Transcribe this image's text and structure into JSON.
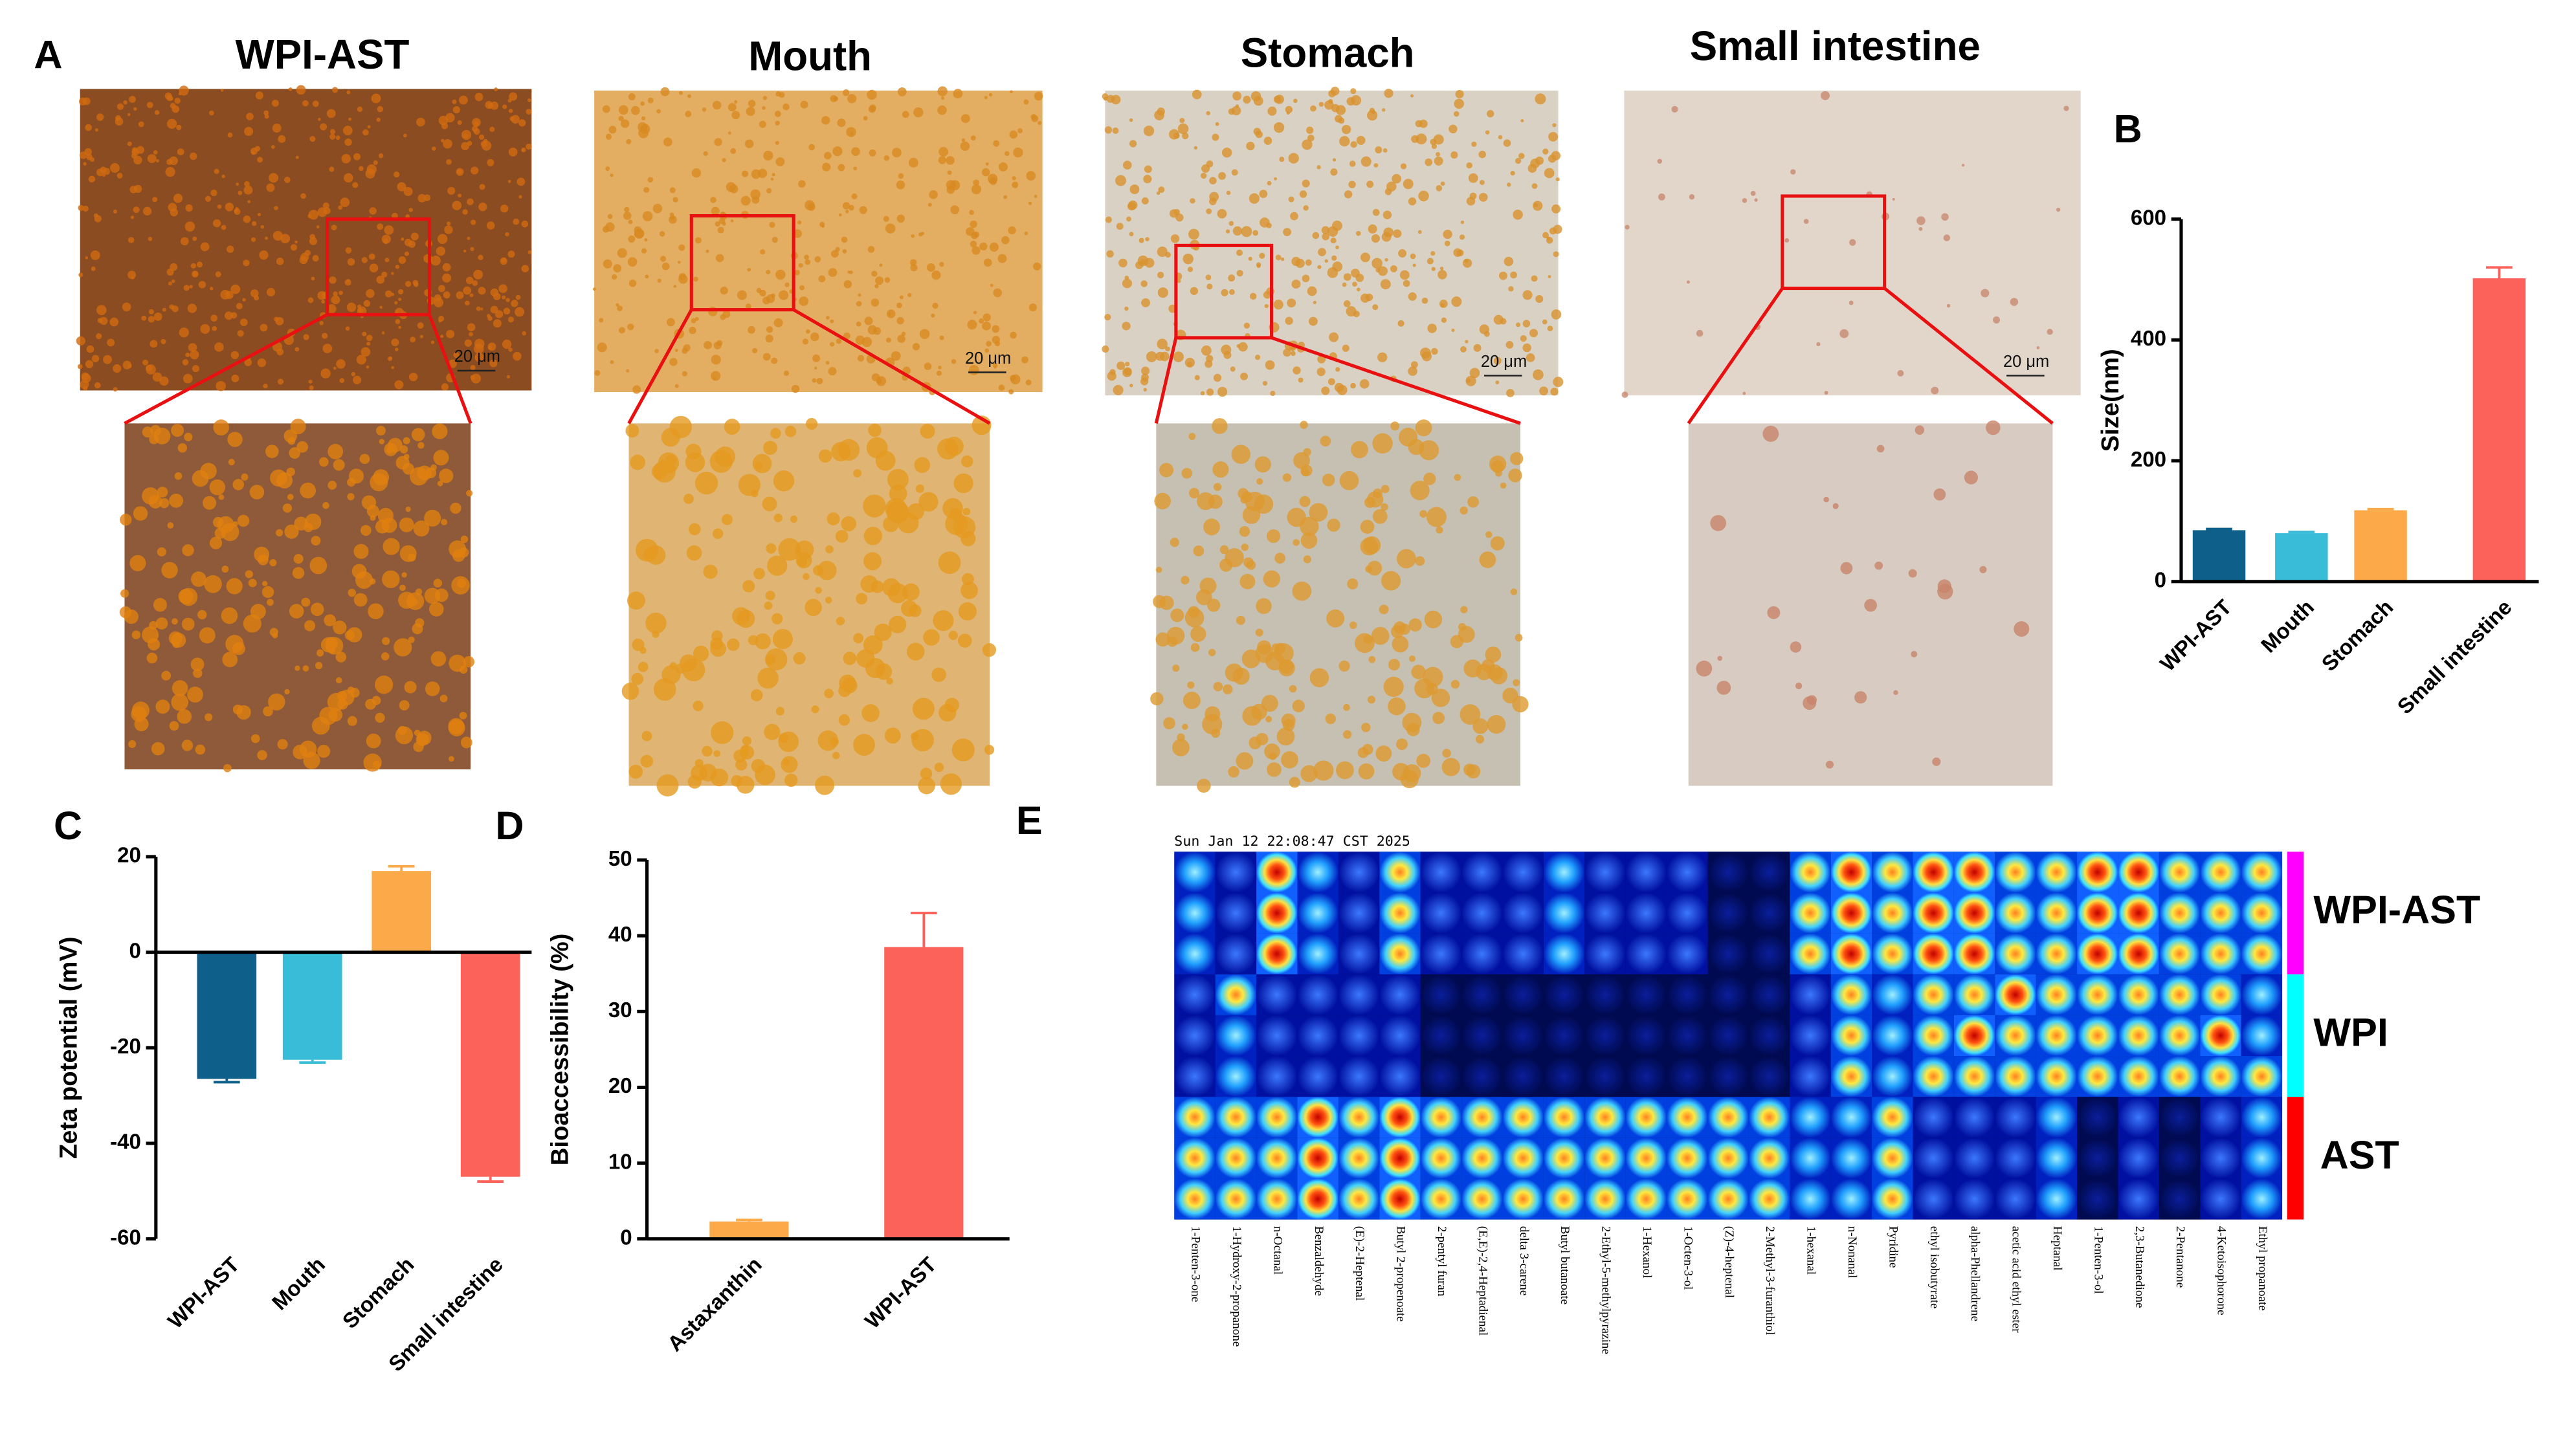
{
  "panel_labels": [
    "A",
    "B",
    "C",
    "D",
    "E"
  ],
  "micrographs": {
    "titles": [
      "WPI-AST",
      "Mouth",
      "Stomach",
      "Small intestine"
    ],
    "scale_bar": "20 μm"
  },
  "chart_data": [
    {
      "type": "bar",
      "ylabel": "Size(nm)",
      "categories": [
        "WPI-AST",
        "Mouth",
        "Stomach",
        "Small intestine"
      ],
      "values": [
        85,
        80,
        118,
        502
      ],
      "errors": [
        2,
        2,
        2,
        18
      ],
      "colors": [
        "#0e5f8a",
        "#38bcd8",
        "#fca94a",
        "#fc625a"
      ],
      "ylim": [
        0,
        600
      ],
      "yticks": [
        0,
        200,
        400,
        600
      ]
    },
    {
      "type": "bar",
      "ylabel": "Zeta potential (mV)",
      "categories": [
        "WPI-AST",
        "Mouth",
        "Stomach",
        "Small intestine"
      ],
      "values": [
        -26.5,
        -22.5,
        17,
        -47
      ],
      "errors": [
        0.7,
        0.6,
        1,
        1
      ],
      "colors": [
        "#0e5f8a",
        "#38bcd8",
        "#fca94a",
        "#fc625a"
      ],
      "ylim": [
        -60,
        20
      ],
      "yticks": [
        -60,
        -40,
        -20,
        0,
        20
      ]
    },
    {
      "type": "bar",
      "ylabel": "Bioaccessibility (%)",
      "categories": [
        "Astaxanthin",
        "WPI-AST"
      ],
      "values": [
        2.3,
        38.5
      ],
      "errors": [
        0.2,
        4.5
      ],
      "colors": [
        "#fca94a",
        "#fc625a"
      ],
      "ylim": [
        0,
        50
      ],
      "yticks": [
        0,
        10,
        20,
        30,
        40,
        50
      ]
    }
  ],
  "gallery_plot": {
    "timestamp": "Sun Jan 12 22:08:47 CST 2025",
    "groups": [
      {
        "name": "WPI-AST",
        "color": "#ff00ff"
      },
      {
        "name": "WPI",
        "color": "#00ffff"
      },
      {
        "name": "AST",
        "color": "#ff0000"
      }
    ],
    "compounds": [
      "1-Penten-3-one",
      "1-Hydroxy-2-propanone",
      "n-Octanal",
      "Benzaldehyde",
      "(E)-2-Heptenal",
      "Butyl 2-propenoate",
      "2-pentyl furan",
      "(E,E)-2,4-Heptadienal",
      "delta 3-carene",
      "Butyl butanoate",
      "2-Ethyl-5-methylpyrazine",
      "1-Hexanol",
      "1-Octen-3-ol",
      "(Z)-4-heptenal",
      "2-Methyl-3-furanthiol",
      "1-hexanal",
      "n-Nonanal",
      "Pyridine",
      "ethyl isobutyrate",
      "alpha-Phellandrene",
      "acetic acid ethyl ester",
      "Heptanal",
      "1-Penten-3-ol",
      "2,3-Butanedione",
      "2-Pentanone",
      "4-Ketoisophorone",
      "Ethyl propanoate"
    ],
    "intensity": [
      [
        2,
        1,
        4,
        2,
        1,
        3,
        1,
        1,
        1,
        2,
        1,
        1,
        1,
        0,
        0,
        3,
        4,
        3,
        4,
        4,
        3,
        3,
        4,
        4,
        3,
        3,
        3
      ],
      [
        2,
        1,
        4,
        2,
        1,
        3,
        1,
        1,
        1,
        2,
        1,
        1,
        1,
        0,
        0,
        3,
        4,
        3,
        4,
        4,
        3,
        3,
        4,
        4,
        3,
        3,
        3
      ],
      [
        2,
        1,
        4,
        2,
        1,
        3,
        1,
        1,
        1,
        2,
        1,
        1,
        1,
        0,
        0,
        3,
        4,
        3,
        4,
        4,
        3,
        3,
        4,
        4,
        3,
        3,
        3
      ],
      [
        1,
        3,
        1,
        1,
        1,
        1,
        0,
        0,
        0,
        0,
        0,
        0,
        0,
        0,
        0,
        1,
        3,
        2,
        3,
        3,
        4,
        3,
        3,
        3,
        3,
        3,
        2
      ],
      [
        1,
        2,
        1,
        1,
        1,
        1,
        0,
        0,
        0,
        0,
        0,
        0,
        0,
        0,
        0,
        1,
        3,
        2,
        3,
        4,
        3,
        3,
        3,
        3,
        3,
        4,
        2
      ],
      [
        1,
        2,
        1,
        1,
        1,
        1,
        0,
        0,
        0,
        0,
        0,
        0,
        0,
        0,
        0,
        1,
        3,
        2,
        3,
        3,
        3,
        3,
        3,
        3,
        3,
        3,
        3
      ],
      [
        3,
        3,
        3,
        4,
        3,
        4,
        3,
        3,
        3,
        3,
        3,
        3,
        3,
        3,
        3,
        2,
        2,
        3,
        1,
        1,
        1,
        2,
        0,
        1,
        0,
        1,
        2
      ],
      [
        3,
        3,
        3,
        4,
        3,
        4,
        3,
        3,
        3,
        3,
        3,
        3,
        3,
        3,
        3,
        2,
        2,
        3,
        1,
        1,
        1,
        2,
        0,
        1,
        0,
        1,
        2
      ],
      [
        3,
        3,
        3,
        4,
        3,
        4,
        3,
        3,
        3,
        3,
        3,
        3,
        3,
        3,
        3,
        2,
        2,
        3,
        1,
        1,
        1,
        2,
        0,
        1,
        0,
        1,
        2
      ]
    ]
  }
}
